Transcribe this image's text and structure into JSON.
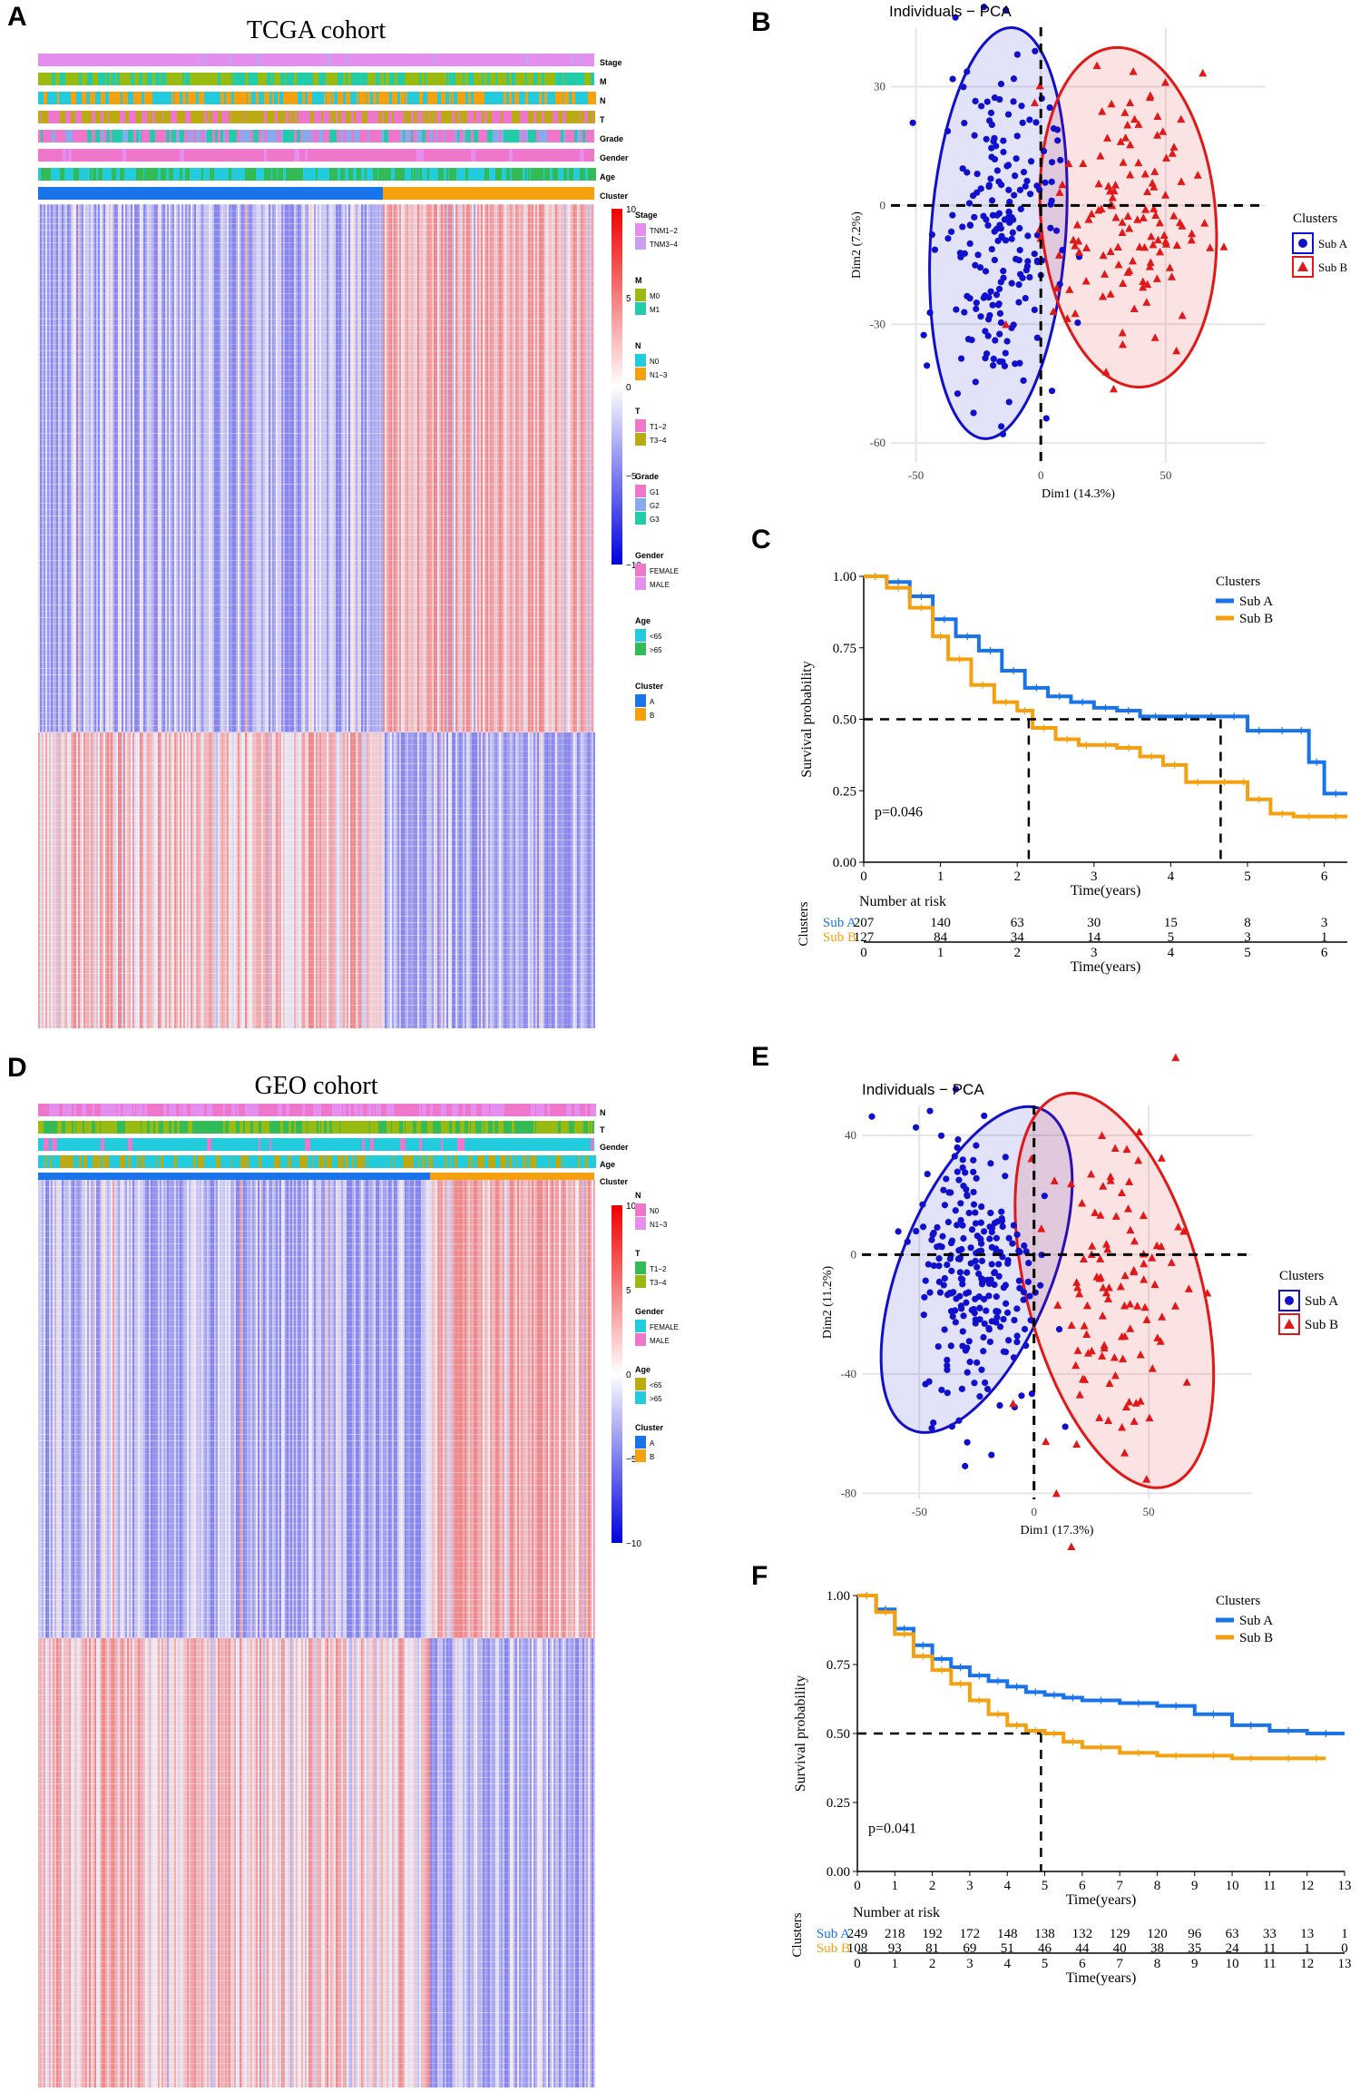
{
  "panel_labels": {
    "a": "A",
    "b": "B",
    "c": "C",
    "d": "D",
    "e": "E",
    "f": "F"
  },
  "colors": {
    "sub_a": "#1874E8",
    "sub_b": "#F5A00F",
    "pca_a": "#1010CC",
    "pca_b": "#E01818",
    "heat_low": "#1010E0",
    "heat_high": "#E81818",
    "stage_pink": "#E58EF0",
    "m_green": "#99BB11",
    "n_cyan": "#22CCDD",
    "grade_teal": "#22CCA8",
    "age_green": "#33BB77",
    "gender_pink": "#EE77CC"
  },
  "heatmap_tcga": {
    "title": "TCGA cohort",
    "tracks": [
      "Stage",
      "M",
      "N",
      "T",
      "Grade",
      "Gender",
      "Age",
      "Cluster"
    ],
    "scale_ticks": [
      "10",
      "5",
      "0",
      "−5",
      "−10"
    ],
    "legend": [
      {
        "title": "Stage",
        "items": [
          {
            "label": "TNM1−2",
            "color": "#E58EF0"
          },
          {
            "label": "TNM3−4",
            "color": "#C9A0F0"
          }
        ]
      },
      {
        "title": "M",
        "items": [
          {
            "label": "M0",
            "color": "#99BB11"
          },
          {
            "label": "M1",
            "color": "#22CCA8"
          }
        ]
      },
      {
        "title": "N",
        "items": [
          {
            "label": "N0",
            "color": "#22CCDD"
          },
          {
            "label": "N1−3",
            "color": "#F5A00F"
          }
        ]
      },
      {
        "title": "T",
        "items": [
          {
            "label": "T1−2",
            "color": "#EE77CC"
          },
          {
            "label": "T3−4",
            "color": "#BBAA11"
          }
        ]
      },
      {
        "title": "Grade",
        "items": [
          {
            "label": "G1",
            "color": "#EE77CC"
          },
          {
            "label": "G2",
            "color": "#88AAEE"
          },
          {
            "label": "G3",
            "color": "#22CCA8"
          }
        ]
      },
      {
        "title": "Gender",
        "items": [
          {
            "label": "FEMALE",
            "color": "#EE77CC"
          },
          {
            "label": "MALE",
            "color": "#E58EF0"
          }
        ]
      },
      {
        "title": "Age",
        "items": [
          {
            "label": "<65",
            "color": "#22CCDD"
          },
          {
            "label": ">65",
            "color": "#33BB55"
          }
        ]
      },
      {
        "title": "Cluster",
        "items": [
          {
            "label": "A",
            "color": "#1874E8"
          },
          {
            "label": "B",
            "color": "#F5A00F"
          }
        ]
      }
    ]
  },
  "heatmap_geo": {
    "title": "GEO cohort",
    "tracks": [
      "N",
      "T",
      "Gender",
      "Age",
      "Cluster"
    ],
    "scale_ticks": [
      "10",
      "5",
      "0",
      "−5",
      "−10"
    ],
    "legend": [
      {
        "title": "N",
        "items": [
          {
            "label": "N0",
            "color": "#EE77CC"
          },
          {
            "label": "N1−3",
            "color": "#E58EF0"
          }
        ]
      },
      {
        "title": "T",
        "items": [
          {
            "label": "T1−2",
            "color": "#33BB55"
          },
          {
            "label": "T3−4",
            "color": "#99BB11"
          }
        ]
      },
      {
        "title": "Gender",
        "items": [
          {
            "label": "FEMALE",
            "color": "#22CCDD"
          },
          {
            "label": "MALE",
            "color": "#EE77CC"
          }
        ]
      },
      {
        "title": "Age",
        "items": [
          {
            "label": "<65",
            "color": "#BBAA11"
          },
          {
            "label": ">65",
            "color": "#22CCDD"
          }
        ]
      },
      {
        "title": "Cluster",
        "items": [
          {
            "label": "A",
            "color": "#1874E8"
          },
          {
            "label": "B",
            "color": "#F5A00F"
          }
        ]
      }
    ]
  },
  "chart_data": [
    {
      "type": "scatter",
      "panel": "B",
      "title": "Individuals − PCA",
      "xlabel": "Dim1 (14.3%)",
      "ylabel": "Dim2 (7.2%)",
      "xlim": [
        -60,
        90
      ],
      "ylim": [
        -65,
        45
      ],
      "xticks": [
        -50,
        0,
        50
      ],
      "yticks": [
        -60,
        -30,
        0,
        30
      ],
      "legend_title": "Clusters",
      "legend_position": "right",
      "series": [
        {
          "name": "Sub A",
          "marker": "circle",
          "center": [
            -15,
            5
          ],
          "n": 207,
          "ellipse": {
            "center": [
              -17,
              -7
            ],
            "rx": 27,
            "ry": 52,
            "angle": 4
          }
        },
        {
          "name": "Sub B",
          "marker": "triangle",
          "center": [
            35,
            0
          ],
          "n": 127,
          "ellipse": {
            "center": [
              35,
              -3
            ],
            "rx": 35,
            "ry": 43,
            "angle": -5
          }
        }
      ]
    },
    {
      "type": "line",
      "panel": "C",
      "subtype": "kaplan-meier",
      "xlabel": "Time(years)",
      "ylabel": "Survival probability",
      "xlim": [
        0,
        6.3
      ],
      "ylim": [
        0,
        1
      ],
      "xticks": [
        0,
        1,
        2,
        3,
        4,
        5,
        6
      ],
      "yticks": [
        "0.00",
        "0.25",
        "0.50",
        "0.75",
        "1.00"
      ],
      "pvalue": "p=0.046",
      "legend_title": "Clusters",
      "series": [
        {
          "name": "Sub A",
          "x": [
            0,
            0.3,
            0.6,
            0.9,
            1.2,
            1.5,
            1.8,
            2.1,
            2.4,
            2.7,
            3.0,
            3.3,
            3.6,
            4.0,
            4.4,
            4.65,
            5.0,
            5.3,
            5.6,
            5.8,
            6.0,
            6.3
          ],
          "y": [
            1.0,
            0.98,
            0.93,
            0.85,
            0.79,
            0.74,
            0.67,
            0.61,
            0.58,
            0.56,
            0.54,
            0.53,
            0.51,
            0.51,
            0.51,
            0.51,
            0.46,
            0.46,
            0.46,
            0.35,
            0.24,
            0.24
          ]
        },
        {
          "name": "Sub B",
          "x": [
            0,
            0.3,
            0.6,
            0.9,
            1.1,
            1.4,
            1.7,
            2.0,
            2.2,
            2.5,
            2.8,
            3.0,
            3.3,
            3.6,
            3.9,
            4.2,
            4.5,
            4.9,
            5.0,
            5.3,
            5.6,
            6.0,
            6.3
          ],
          "y": [
            1.0,
            0.96,
            0.89,
            0.79,
            0.71,
            0.62,
            0.56,
            0.53,
            0.47,
            0.43,
            0.41,
            0.41,
            0.4,
            0.37,
            0.34,
            0.28,
            0.28,
            0.28,
            0.22,
            0.17,
            0.16,
            0.16,
            0.16
          ]
        }
      ],
      "median_lines": [
        {
          "x": 2.15,
          "y": 0.5
        },
        {
          "x": 4.65,
          "y": 0.5
        }
      ],
      "risk_table": {
        "title": "Number at risk",
        "ylabel": "Clusters",
        "xlabel": "Time(years)",
        "times": [
          "0",
          "1",
          "2",
          "3",
          "4",
          "5",
          "6"
        ],
        "rows": [
          {
            "name": "Sub A",
            "values": [
              "207",
              "140",
              "63",
              "30",
              "15",
              "8",
              "3"
            ]
          },
          {
            "name": "Sub B",
            "values": [
              "127",
              "84",
              "34",
              "14",
              "5",
              "3",
              "1"
            ]
          }
        ]
      }
    },
    {
      "type": "scatter",
      "panel": "E",
      "title": "Individuals − PCA",
      "xlabel": "Dim1 (17.3%)",
      "ylabel": "Dim2 (11.2%)",
      "xlim": [
        -75,
        95
      ],
      "ylim": [
        -82,
        50
      ],
      "xticks": [
        -50,
        0,
        50
      ],
      "yticks": [
        -80,
        -40,
        0,
        40
      ],
      "legend_title": "Clusters",
      "legend_position": "right",
      "series": [
        {
          "name": "Sub A",
          "marker": "circle",
          "center": [
            -20,
            5
          ],
          "n": 249,
          "ellipse": {
            "center": [
              -25,
              -5
            ],
            "rx": 33,
            "ry": 58,
            "angle": 22
          }
        },
        {
          "name": "Sub B",
          "marker": "triangle",
          "center": [
            35,
            -10
          ],
          "n": 108,
          "ellipse": {
            "center": [
              35,
              -12
            ],
            "rx": 38,
            "ry": 68,
            "angle": -15
          }
        }
      ]
    },
    {
      "type": "line",
      "panel": "F",
      "subtype": "kaplan-meier",
      "xlabel": "Time(years)",
      "ylabel": "Survival probability",
      "xlim": [
        0,
        13
      ],
      "ylim": [
        0,
        1
      ],
      "xticks": [
        0,
        1,
        2,
        3,
        4,
        5,
        6,
        7,
        8,
        9,
        10,
        11,
        12,
        13
      ],
      "yticks": [
        "0.00",
        "0.25",
        "0.50",
        "0.75",
        "1.00"
      ],
      "pvalue": "p=0.041",
      "legend_title": "Clusters",
      "series": [
        {
          "name": "Sub A",
          "x": [
            0,
            0.5,
            1,
            1.5,
            2,
            2.5,
            3,
            3.5,
            4,
            4.5,
            5,
            5.5,
            6,
            7,
            8,
            9,
            10,
            11,
            12,
            13
          ],
          "y": [
            1.0,
            0.95,
            0.88,
            0.82,
            0.77,
            0.74,
            0.71,
            0.69,
            0.67,
            0.65,
            0.64,
            0.63,
            0.62,
            0.61,
            0.6,
            0.57,
            0.53,
            0.51,
            0.5,
            0.5
          ]
        },
        {
          "name": "Sub B",
          "x": [
            0,
            0.5,
            1,
            1.5,
            2,
            2.5,
            3,
            3.5,
            4,
            4.5,
            5,
            5.5,
            6,
            7,
            8,
            9,
            10,
            11,
            12,
            12.5
          ],
          "y": [
            1.0,
            0.94,
            0.86,
            0.78,
            0.73,
            0.68,
            0.62,
            0.57,
            0.53,
            0.51,
            0.5,
            0.47,
            0.45,
            0.43,
            0.42,
            0.42,
            0.41,
            0.41,
            0.41,
            0.41
          ]
        }
      ],
      "median_lines": [
        {
          "x": 4.9,
          "y": 0.5
        }
      ],
      "risk_table": {
        "title": "Number at risk",
        "ylabel": "Clusters",
        "xlabel": "Time(years)",
        "times": [
          "0",
          "1",
          "2",
          "3",
          "4",
          "5",
          "6",
          "7",
          "8",
          "9",
          "10",
          "11",
          "12",
          "13"
        ],
        "rows": [
          {
            "name": "Sub A",
            "values": [
              "249",
              "218",
              "192",
              "172",
              "148",
              "138",
              "132",
              "129",
              "120",
              "96",
              "63",
              "33",
              "13",
              "1"
            ]
          },
          {
            "name": "Sub B",
            "values": [
              "108",
              "93",
              "81",
              "69",
              "51",
              "46",
              "44",
              "40",
              "38",
              "35",
              "24",
              "11",
              "1",
              "0"
            ]
          }
        ]
      }
    }
  ]
}
